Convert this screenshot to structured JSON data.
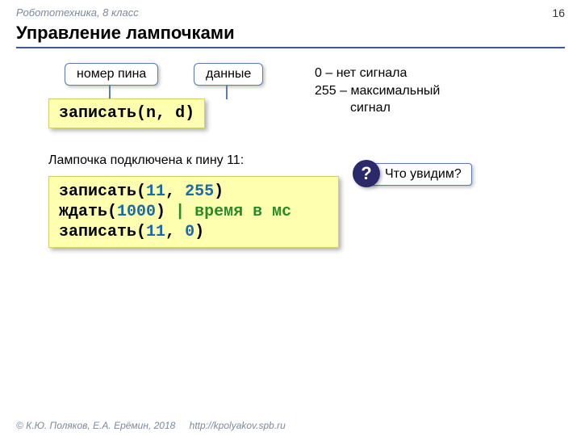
{
  "header": {
    "course": "Робототехника, 8 класс",
    "pageNumber": "16",
    "title": "Управление лампочками"
  },
  "labels": {
    "pin": "номер пина",
    "data": "данные"
  },
  "codeSmall": {
    "fn": "записать",
    "open": "(",
    "arg1": "n",
    "sep": ", ",
    "arg2": "d",
    "close": ")"
  },
  "legend": {
    "line1": "0 – нет сигнала",
    "line2a": "255 – максимальный",
    "line2b": "сигнал"
  },
  "subtitle": "Лампочка подключена к пину 11:",
  "codeBig": {
    "l1_fn": "записать",
    "l1_a": "(",
    "l1_n1": "11",
    "l1_s": ", ",
    "l1_n2": "255",
    "l1_b": ")",
    "l2_fn": "ждать",
    "l2_a": "(",
    "l2_n": "1000",
    "l2_b": ") ",
    "l2_cmt": "| время в мс",
    "l3_fn": "записать",
    "l3_a": "(",
    "l3_n1": "11",
    "l3_s": ", ",
    "l3_n2": "0",
    "l3_b": ")"
  },
  "question": {
    "badge": "?",
    "text": "Что увидим?"
  },
  "footer": {
    "copyright": "© К.Ю. Поляков, Е.А. Ерёмин, 2018",
    "url": "http://kpolyakov.spb.ru"
  },
  "colors": {
    "accent": "#3a5a9a",
    "code_bg": "#ffffb0",
    "num": "#1a6aaa",
    "comment": "#2a8a2a",
    "badge_bg": "#2a2a6a"
  }
}
